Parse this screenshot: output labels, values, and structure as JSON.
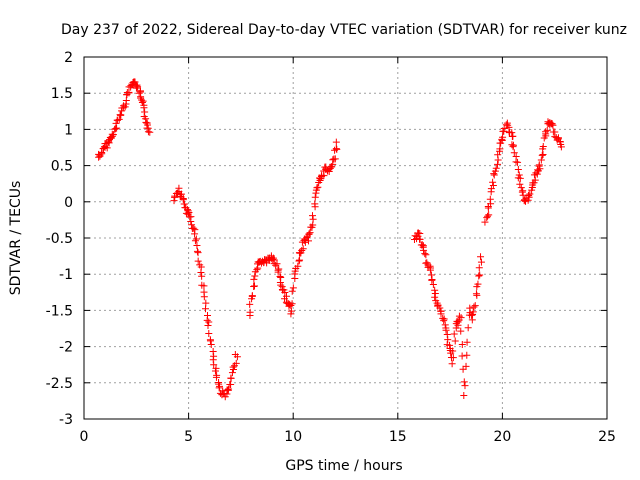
{
  "chart_data": {
    "type": "scatter",
    "title": "Day 237 of 2022, Sidereal Day-to-day VTEC variation (SDTVAR) for receiver kunz",
    "xlabel": "GPS time / hours",
    "ylabel": "SDTVAR / TECUs",
    "xlim": [
      0,
      25
    ],
    "ylim": [
      -3,
      2
    ],
    "xticks": [
      "0",
      "5",
      "10",
      "15",
      "20",
      "25"
    ],
    "yticks": [
      "-3",
      "-2.5",
      "-2",
      "-1.5",
      "-1",
      "-0.5",
      "0",
      "0.5",
      "1",
      "1.5",
      "2"
    ],
    "grid": true,
    "marker": "+",
    "color": "#ff0000",
    "segments": [
      {
        "x": [
          0.7,
          0.9,
          1.1,
          1.3,
          1.5,
          1.7,
          1.9,
          2.1,
          2.3,
          2.5,
          2.7,
          2.85,
          3.0,
          3.15
        ],
        "y": [
          0.62,
          0.7,
          0.8,
          0.88,
          1.0,
          1.18,
          1.32,
          1.5,
          1.65,
          1.62,
          1.48,
          1.3,
          1.1,
          0.95
        ]
      },
      {
        "x": [
          4.3,
          4.5,
          4.7,
          4.9,
          5.1,
          5.3,
          5.5,
          5.7,
          5.9,
          6.1,
          6.3,
          6.5,
          6.7,
          6.9,
          7.1,
          7.3
        ],
        "y": [
          0.05,
          0.18,
          0.05,
          -0.12,
          -0.22,
          -0.45,
          -0.8,
          -1.2,
          -1.6,
          -2.0,
          -2.35,
          -2.6,
          -2.67,
          -2.62,
          -2.4,
          -2.1
        ]
      },
      {
        "x": [
          7.9,
          8.1,
          8.3,
          8.5,
          8.7,
          8.9,
          9.1,
          9.3,
          9.5,
          9.7,
          9.9,
          10.1,
          10.3,
          10.5,
          10.7,
          10.9,
          11.1,
          11.3,
          11.5,
          11.7,
          11.9,
          12.1
        ],
        "y": [
          -1.55,
          -1.2,
          -0.88,
          -0.82,
          -0.82,
          -0.78,
          -0.8,
          -0.98,
          -1.2,
          -1.35,
          -1.55,
          -1.0,
          -0.75,
          -0.55,
          -0.5,
          -0.3,
          0.1,
          0.3,
          0.45,
          0.45,
          0.55,
          0.8
        ]
      },
      {
        "x": [
          15.8,
          16.0,
          16.2,
          16.4,
          16.6,
          16.8,
          17.0,
          17.2,
          17.4,
          17.6,
          17.8,
          18.0,
          18.2,
          18.4,
          18.6,
          18.8,
          19.0
        ],
        "y": [
          -0.5,
          -0.45,
          -0.62,
          -0.85,
          -1.0,
          -1.3,
          -1.48,
          -1.65,
          -1.95,
          -2.2,
          -1.7,
          -1.6,
          -2.7,
          -1.5,
          -1.6,
          -1.2,
          -0.75
        ]
      },
      {
        "x": [
          19.2,
          19.4,
          19.6,
          19.8,
          20.0,
          20.2,
          20.4,
          20.6,
          20.8,
          21.0,
          21.2,
          21.4,
          21.6,
          21.8,
          22.0,
          22.2,
          22.4,
          22.6,
          22.8
        ],
        "y": [
          -0.3,
          0.0,
          0.35,
          0.65,
          0.9,
          1.05,
          0.95,
          0.7,
          0.35,
          0.05,
          0.0,
          0.2,
          0.38,
          0.5,
          0.85,
          1.08,
          1.05,
          0.88,
          0.78
        ]
      }
    ]
  }
}
